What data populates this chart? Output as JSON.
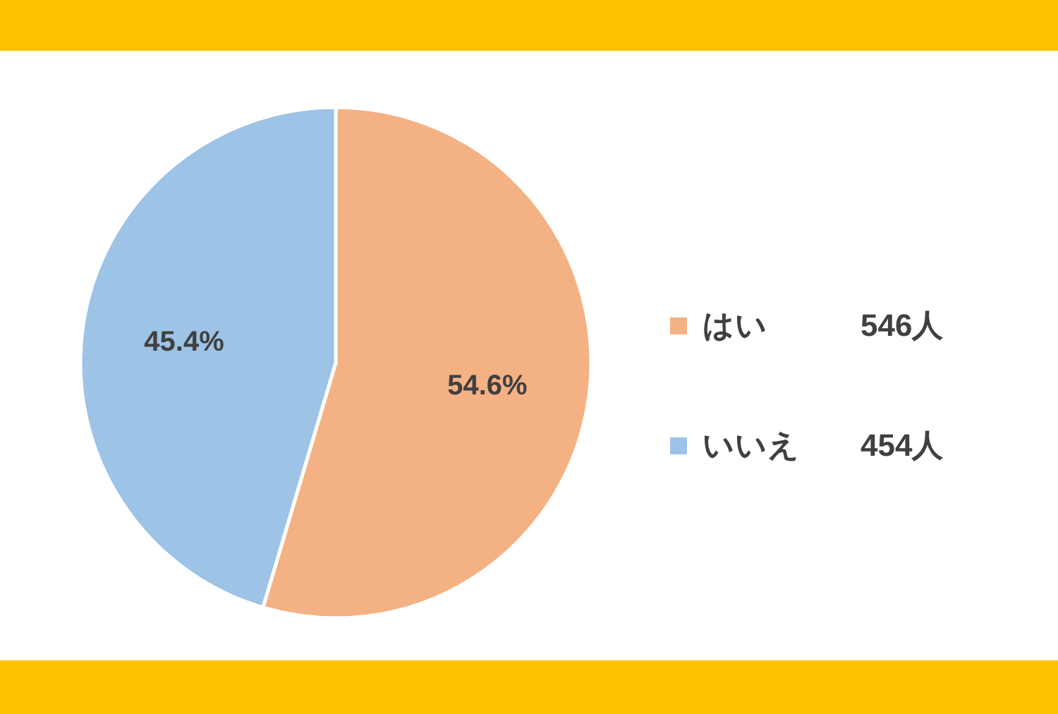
{
  "chart_data": {
    "type": "pie",
    "categories": [
      "はい",
      "いいえ"
    ],
    "values": [
      54.6,
      45.4
    ],
    "value_labels": [
      "54.6%",
      "45.4%"
    ],
    "colors": [
      "#f4b183",
      "#9dc3e6"
    ],
    "legend": "right",
    "annotations": [
      "546人",
      "454人"
    ]
  }
}
